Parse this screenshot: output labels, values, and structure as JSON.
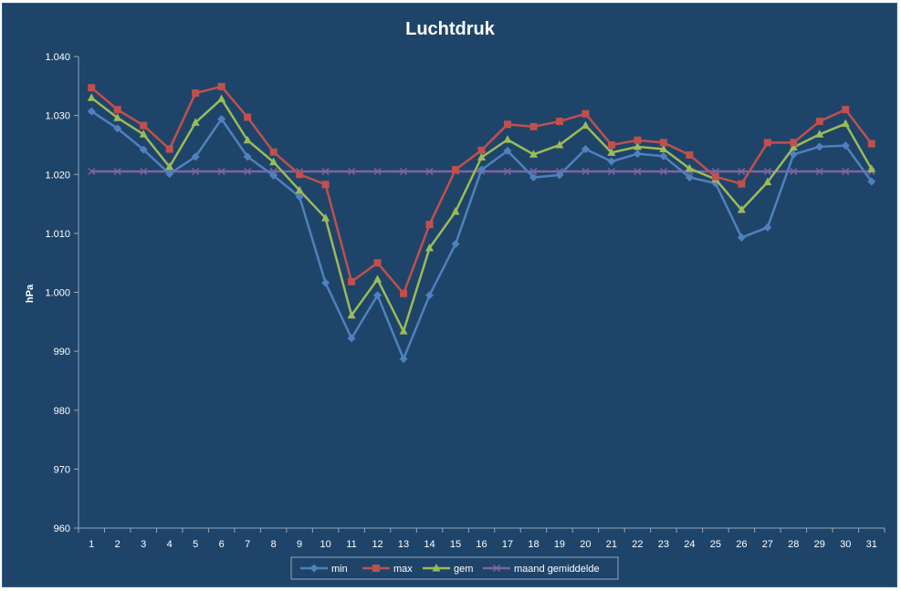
{
  "chart_data": {
    "type": "line",
    "title": "Luchtdruk",
    "xlabel": "",
    "ylabel": "hPa",
    "ylim": [
      960,
      1040
    ],
    "yticks": [
      960,
      970,
      980,
      990,
      1000,
      1010,
      1020,
      1030,
      1040
    ],
    "ytick_labels": [
      "960",
      "970",
      "980",
      "990",
      "1.000",
      "1.010",
      "1.020",
      "1.030",
      "1.040"
    ],
    "x": [
      "1",
      "2",
      "3",
      "4",
      "5",
      "6",
      "7",
      "8",
      "9",
      "10",
      "11",
      "12",
      "13",
      "14",
      "15",
      "16",
      "17",
      "18",
      "19",
      "20",
      "21",
      "22",
      "23",
      "24",
      "25",
      "26",
      "27",
      "28",
      "29",
      "30",
      "31"
    ],
    "grid": false,
    "legend_position": "bottom",
    "series": [
      {
        "name": "min",
        "color": "#4f81bd",
        "marker": "diamond",
        "values": [
          1030.7,
          1027.8,
          1024.2,
          1020.1,
          1023.0,
          1029.4,
          1023.0,
          1019.8,
          1016.2,
          1001.6,
          992.2,
          999.5,
          988.7,
          999.5,
          1008.2,
          1020.8,
          1024.0,
          1019.5,
          1019.9,
          1024.3,
          1022.2,
          1023.5,
          1023.1,
          1019.5,
          1018.5,
          1009.3,
          1011.0,
          1023.4,
          1024.7,
          1024.9,
          1018.8
        ]
      },
      {
        "name": "max",
        "color": "#c0504d",
        "marker": "square",
        "values": [
          1034.7,
          1031.0,
          1028.3,
          1024.3,
          1033.8,
          1034.9,
          1029.7,
          1023.8,
          1020.0,
          1018.3,
          1001.8,
          1005.0,
          999.8,
          1011.5,
          1020.8,
          1024.1,
          1028.5,
          1028.1,
          1029.0,
          1030.3,
          1025.0,
          1025.8,
          1025.4,
          1023.3,
          1019.6,
          1018.4,
          1025.4,
          1025.4,
          1029.0,
          1031.0,
          1025.2
        ]
      },
      {
        "name": "gem",
        "color": "#9bbb59",
        "marker": "triangle",
        "values": [
          1033.0,
          1029.6,
          1026.8,
          1021.3,
          1028.8,
          1032.8,
          1025.8,
          1022.1,
          1017.3,
          1012.6,
          996.1,
          1002.2,
          993.4,
          1007.5,
          1013.7,
          1022.9,
          1025.9,
          1023.4,
          1025.0,
          1028.3,
          1023.7,
          1024.7,
          1024.3,
          1021.0,
          1019.2,
          1014.0,
          1018.7,
          1024.6,
          1026.8,
          1028.6,
          1020.9
        ]
      },
      {
        "name": "maand gemiddelde",
        "color": "#8064a2",
        "marker": "x",
        "values": [
          1020.5,
          1020.5,
          1020.5,
          1020.5,
          1020.5,
          1020.5,
          1020.5,
          1020.5,
          1020.5,
          1020.5,
          1020.5,
          1020.5,
          1020.5,
          1020.5,
          1020.5,
          1020.5,
          1020.5,
          1020.5,
          1020.5,
          1020.5,
          1020.5,
          1020.5,
          1020.5,
          1020.5,
          1020.5,
          1020.5,
          1020.5,
          1020.5,
          1020.5,
          1020.5,
          1020.5
        ]
      }
    ]
  }
}
